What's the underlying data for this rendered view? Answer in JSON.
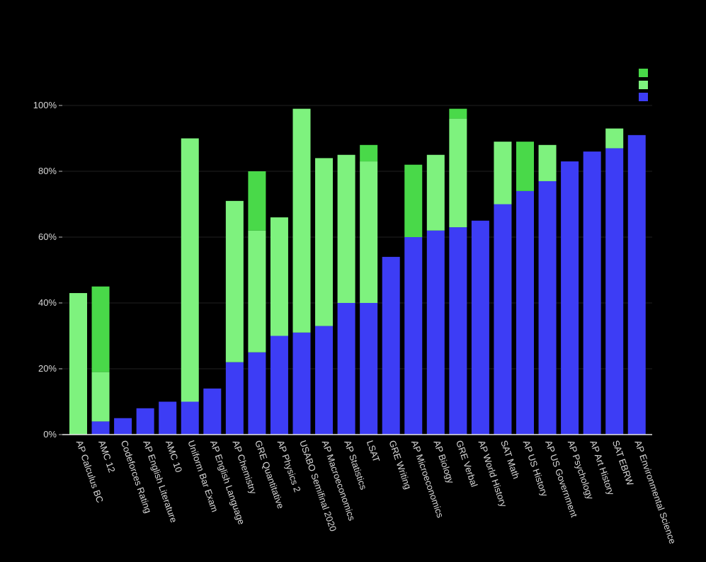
{
  "chart_data": {
    "type": "bar",
    "stacked": true,
    "categories": [
      "AP Calculus BC",
      "AMC 12",
      "Codeforces Rating",
      "AP English Literature",
      "AMC 10",
      "Uniform Bar Exam",
      "AP English Language",
      "AP Chemistry",
      "GRE Quantitative",
      "AP Physics 2",
      "USABO Semifinal 2020",
      "AP Macroeconomics",
      "AP Statistics",
      "LSAT",
      "GRE Writing",
      "AP Microeconomics",
      "AP Biology",
      "GRE Verbal",
      "AP World History",
      "SAT Math",
      "AP US History",
      "AP US Government",
      "AP Psychology",
      "AP Art History",
      "SAT EBRW",
      "AP Environmental Science"
    ],
    "series": [
      {
        "color": "#3d3df5",
        "values": [
          0,
          4,
          5,
          8,
          10,
          10,
          14,
          22,
          25,
          30,
          31,
          33,
          40,
          40,
          54,
          60,
          62,
          63,
          65,
          70,
          74,
          77,
          83,
          86,
          87,
          91
        ]
      },
      {
        "color": "#7ef27e",
        "values": [
          43,
          15,
          0,
          0,
          0,
          80,
          0,
          49,
          37,
          36,
          68,
          51,
          45,
          43,
          0,
          0,
          23,
          33,
          0,
          19,
          0,
          11,
          0,
          0,
          6,
          0
        ]
      },
      {
        "color": "#49d949",
        "values": [
          0,
          26,
          0,
          0,
          0,
          0,
          0,
          0,
          18,
          0,
          0,
          0,
          0,
          5,
          0,
          22,
          0,
          3,
          0,
          0,
          15,
          0,
          0,
          0,
          0,
          0
        ]
      }
    ],
    "y_ticks": [
      "0%",
      "20%",
      "40%",
      "60%",
      "80%",
      "100%"
    ],
    "ylim": [
      0,
      100
    ],
    "grid": true,
    "legend_position": "top-right"
  }
}
